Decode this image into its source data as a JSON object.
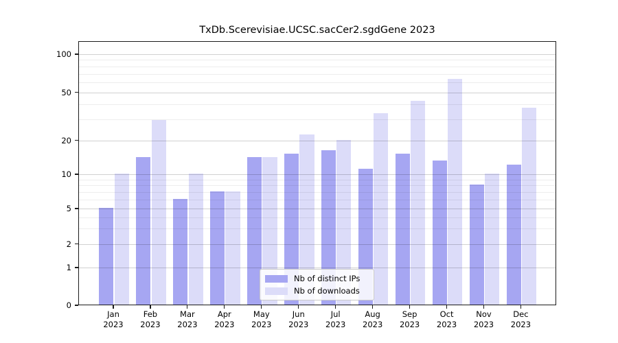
{
  "chart_data": {
    "type": "bar",
    "title": "TxDb.Scerevisiae.UCSC.sacCer2.sgdGene 2023",
    "categories": [
      "Jan",
      "Feb",
      "Mar",
      "Apr",
      "May",
      "Jun",
      "Jul",
      "Aug",
      "Sep",
      "Oct",
      "Nov",
      "Dec"
    ],
    "year": "2023",
    "series": [
      {
        "name": "Nb of distinct IPs",
        "color": "#a6a6f2",
        "values": [
          5,
          14,
          6,
          7,
          14,
          15,
          16,
          11,
          15,
          13,
          8,
          12
        ]
      },
      {
        "name": "Nb of downloads",
        "color": "#dcdcf9",
        "values": [
          10,
          29,
          10,
          7,
          14,
          22,
          20,
          33,
          42,
          63,
          10,
          37
        ]
      }
    ],
    "y_axis": {
      "ticks": [
        0,
        1,
        2,
        5,
        10,
        20,
        50,
        100
      ],
      "minor_ticks": [
        3,
        4,
        6,
        7,
        8,
        9,
        30,
        40,
        60,
        70,
        80,
        90
      ],
      "scale": "logarithmic above 1, linear from 0 to 1",
      "range": [
        0,
        120
      ]
    },
    "xlabel": "",
    "ylabel": "",
    "grid": "horizontal major and minor gridlines",
    "legend_position": "bottom center inside plot"
  }
}
